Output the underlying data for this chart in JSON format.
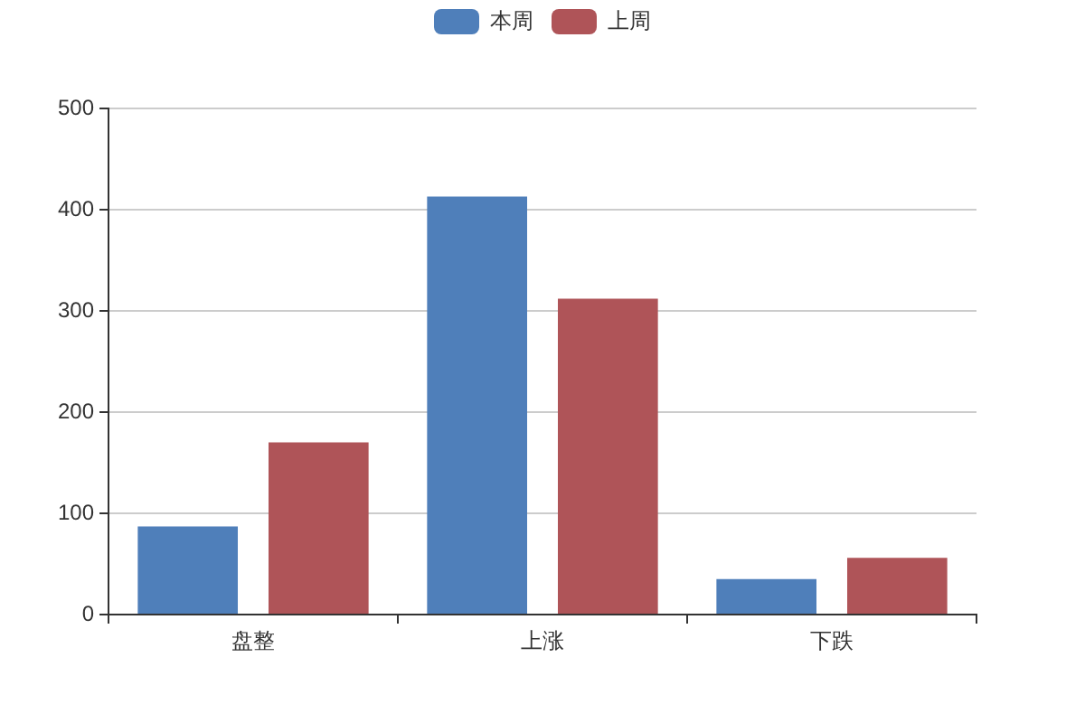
{
  "chart_data": {
    "type": "bar",
    "categories": [
      "盘整",
      "上涨",
      "下跌"
    ],
    "series": [
      {
        "name": "本周",
        "color": "#4f7fba",
        "values": [
          87,
          413,
          35
        ]
      },
      {
        "name": "上周",
        "color": "#af5458",
        "values": [
          170,
          312,
          56
        ]
      }
    ],
    "ylim": [
      0,
      500
    ],
    "yticks": [
      0,
      100,
      200,
      300,
      400,
      500
    ],
    "grid": "y",
    "legend": "top"
  }
}
